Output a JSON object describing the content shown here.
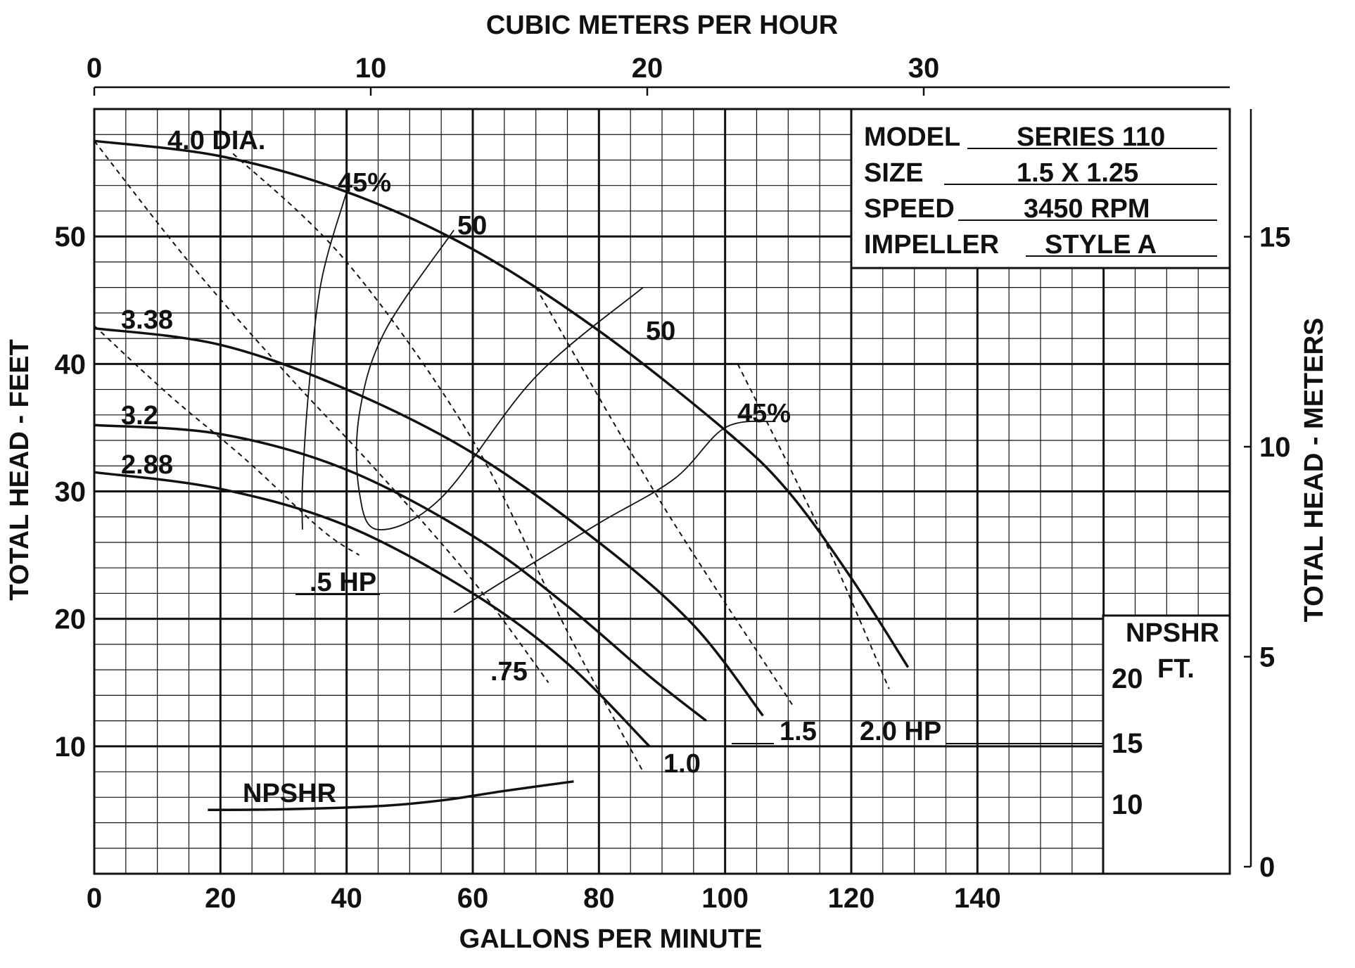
{
  "chart_data": {
    "type": "line",
    "title": "",
    "xlabel": "GALLONS PER MINUTE",
    "x2label": "CUBIC METERS PER HOUR",
    "ylabel": "TOTAL HEAD - FEET",
    "y2label": "TOTAL HEAD - METERS",
    "xlim": [
      0,
      180
    ],
    "ylim": [
      0,
      60
    ],
    "x_ticks": [
      0,
      20,
      40,
      60,
      80,
      100,
      120,
      140
    ],
    "y_ticks": [
      10,
      20,
      30,
      40,
      50
    ],
    "x2_ticks": [
      0,
      10,
      20,
      30
    ],
    "y2_ticks": [
      0,
      5,
      10,
      15
    ],
    "x_tick_labels": [
      "0",
      "20",
      "40",
      "60",
      "80",
      "100",
      "120",
      "140"
    ],
    "y_tick_labels": [
      "10",
      "20",
      "30",
      "40",
      "50"
    ],
    "x2_tick_labels": [
      "0",
      "10",
      "20",
      "30"
    ],
    "y2_tick_labels": [
      "0",
      "5",
      "10",
      "15"
    ],
    "grid": true,
    "info_box": {
      "rows": [
        {
          "label": "MODEL",
          "value": "SERIES 110"
        },
        {
          "label": "SIZE",
          "value": "1.5 X 1.25"
        },
        {
          "label": "SPEED",
          "value": "3450 RPM"
        },
        {
          "label": "IMPELLER",
          "value": "STYLE A"
        }
      ]
    },
    "impeller_curves": [
      {
        "label": "4.0 DIA.",
        "points": [
          [
            0,
            57.5
          ],
          [
            20,
            56.3
          ],
          [
            40,
            53.5
          ],
          [
            60,
            49.0
          ],
          [
            80,
            42.6
          ],
          [
            100,
            34.8
          ],
          [
            110,
            30.0
          ],
          [
            120,
            23.2
          ],
          [
            129,
            16.2
          ]
        ]
      },
      {
        "label": "3.38",
        "points": [
          [
            0,
            42.8
          ],
          [
            20,
            41.5
          ],
          [
            40,
            38.0
          ],
          [
            60,
            33.0
          ],
          [
            80,
            26.0
          ],
          [
            95,
            19.5
          ],
          [
            106,
            12.4
          ]
        ]
      },
      {
        "label": "3.2",
        "points": [
          [
            0,
            35.2
          ],
          [
            20,
            34.5
          ],
          [
            40,
            31.7
          ],
          [
            60,
            26.5
          ],
          [
            75,
            21.0
          ],
          [
            88,
            15.5
          ],
          [
            97,
            12.0
          ]
        ]
      },
      {
        "label": "2.88",
        "points": [
          [
            0,
            31.5
          ],
          [
            20,
            30.2
          ],
          [
            40,
            27.3
          ],
          [
            60,
            22.0
          ],
          [
            75,
            16.5
          ],
          [
            88,
            10.0
          ]
        ]
      }
    ],
    "hp_lines": [
      {
        "label": ".5 HP",
        "points": [
          [
            0,
            43.0
          ],
          [
            12,
            37.5
          ],
          [
            24,
            32.5
          ],
          [
            36,
            27.0
          ],
          [
            42,
            25.0
          ]
        ]
      },
      {
        "label": ".75",
        "points": [
          [
            0,
            57.5
          ],
          [
            15,
            48.0
          ],
          [
            30,
            39.5
          ],
          [
            45,
            31.5
          ],
          [
            60,
            23.0
          ],
          [
            72,
            15.0
          ]
        ]
      },
      {
        "label": "1.0",
        "points": [
          [
            22,
            56.5
          ],
          [
            40,
            48.0
          ],
          [
            60,
            34.0
          ],
          [
            75,
            19.0
          ],
          [
            87,
            8.0
          ]
        ]
      },
      {
        "label": "1.5",
        "points": [
          [
            70,
            46.0
          ],
          [
            90,
            29.0
          ],
          [
            111,
            13.0
          ]
        ]
      },
      {
        "label": "2.0 HP",
        "points": [
          [
            102,
            40.0
          ],
          [
            115,
            27.0
          ],
          [
            126,
            14.5
          ]
        ]
      }
    ],
    "efficiency_curves": [
      {
        "label": "45%",
        "points": [
          [
            33,
            27.0
          ],
          [
            33,
            30.5
          ],
          [
            34,
            38.0
          ],
          [
            36,
            46.5
          ],
          [
            40,
            53.5
          ]
        ]
      },
      {
        "label": "50",
        "points": [
          [
            57,
            50.5
          ],
          [
            46,
            42.5
          ],
          [
            42,
            36.0
          ],
          [
            42,
            30.0
          ],
          [
            45,
            27.0
          ],
          [
            55,
            29.5
          ],
          [
            70,
            39.0
          ],
          [
            87,
            46.0
          ]
        ]
      },
      {
        "label": "45%",
        "points": [
          [
            57,
            20.5
          ],
          [
            65,
            23.0
          ],
          [
            80,
            27.5
          ],
          [
            92,
            31.0
          ],
          [
            100,
            35.0
          ],
          [
            108,
            35.5
          ]
        ]
      }
    ],
    "npshr_curve": {
      "label": "NPSHR",
      "points": [
        [
          18,
          9.3
        ],
        [
          30,
          9.4
        ],
        [
          45,
          9.9
        ],
        [
          55,
          10.8
        ],
        [
          65,
          12.3
        ],
        [
          76,
          13.8
        ]
      ],
      "scale_title": "NPSHR",
      "scale_unit": "FT.",
      "scale_ticks": [
        10,
        15,
        20
      ],
      "scale_tick_labels": [
        "10",
        "15",
        "20"
      ]
    },
    "curve_labels": [
      {
        "text": "4.0 DIA."
      },
      {
        "text": "45%"
      },
      {
        "text": "50"
      },
      {
        "text": "3.38"
      },
      {
        "text": "50"
      },
      {
        "text": "3.2"
      },
      {
        "text": "45%"
      },
      {
        "text": "2.88"
      },
      {
        "text": ".5 HP"
      },
      {
        "text": ".75"
      },
      {
        "text": "1.0"
      },
      {
        "text": "1.5"
      },
      {
        "text": "2.0 HP"
      },
      {
        "text": "NPSHR"
      }
    ]
  }
}
